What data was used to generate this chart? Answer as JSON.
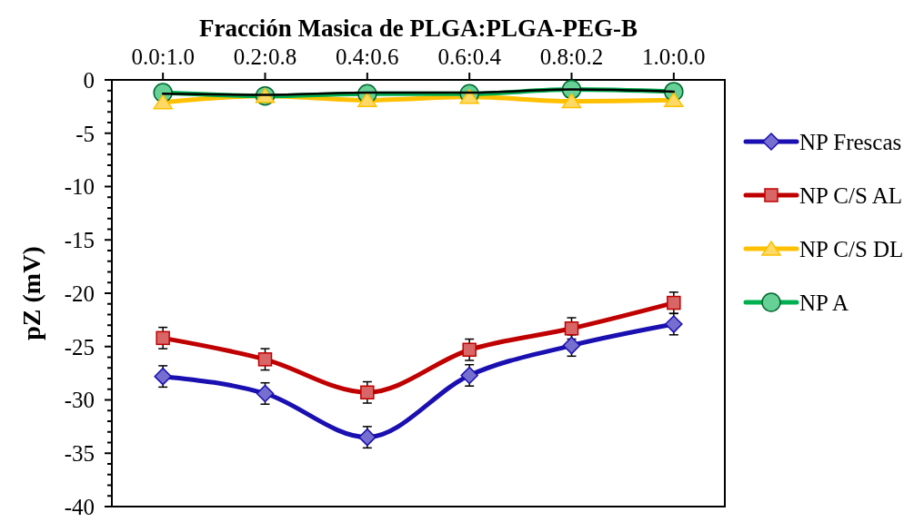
{
  "chart_data": {
    "type": "line",
    "xlabel": "Fracción Masica de PLGA:PLGA-PEG-B",
    "ylabel": "pZ (mV)",
    "categories": [
      "0.0:1.0",
      "0.2:0.8",
      "0.4:0.6",
      "0.6:0.4",
      "0.8:0.2",
      "1.0:0.0"
    ],
    "ylim": [
      -40,
      0
    ],
    "yticks": [
      0,
      {
        "value": -1,
        "label": null
      },
      {
        "value": -2,
        "label": null
      },
      {
        "value": -3,
        "label": null
      },
      {
        "value": -4,
        "label": null
      },
      -5,
      {
        "value": -6,
        "label": null
      },
      {
        "value": -7,
        "label": null
      },
      {
        "value": -8,
        "label": null
      },
      {
        "value": -9,
        "label": null
      },
      -10,
      {
        "value": -11,
        "label": null
      },
      {
        "value": -12,
        "label": null
      },
      {
        "value": -13,
        "label": null
      },
      {
        "value": -14,
        "label": null
      },
      -15,
      {
        "value": -16,
        "label": null
      },
      {
        "value": -17,
        "label": null
      },
      {
        "value": -18,
        "label": null
      },
      {
        "value": -19,
        "label": null
      },
      -20,
      {
        "value": -21,
        "label": null
      },
      {
        "value": -22,
        "label": null
      },
      {
        "value": -23,
        "label": null
      },
      {
        "value": -24,
        "label": null
      },
      -25,
      {
        "value": -26,
        "label": null
      },
      {
        "value": -27,
        "label": null
      },
      {
        "value": -28,
        "label": null
      },
      {
        "value": -29,
        "label": null
      },
      -30,
      {
        "value": -31,
        "label": null
      },
      {
        "value": -32,
        "label": null
      },
      {
        "value": -33,
        "label": null
      },
      {
        "value": -34,
        "label": null
      },
      -35,
      {
        "value": -36,
        "label": null
      },
      {
        "value": -37,
        "label": null
      },
      {
        "value": -38,
        "label": null
      },
      {
        "value": -39,
        "label": null
      },
      -40
    ],
    "legend": "right",
    "series": [
      {
        "name": "NP Frescas",
        "color": "#1a0fb0",
        "marker": "diamond",
        "values": [
          -27.8,
          -29.4,
          -33.5,
          -27.7,
          -24.9,
          -22.9
        ],
        "errors": [
          1,
          1,
          1,
          1,
          1,
          1
        ]
      },
      {
        "name": "NP C/S AL",
        "color": "#c00000",
        "marker": "square",
        "values": [
          -24.2,
          -26.2,
          -29.3,
          -25.3,
          -23.3,
          -20.9
        ],
        "errors": [
          1,
          1,
          1,
          1,
          1,
          1
        ]
      },
      {
        "name": "NP C/S DL",
        "color": "#ffc000",
        "marker": "triangle",
        "values": [
          -2.1,
          -1.5,
          -1.9,
          -1.6,
          -2.0,
          -1.9
        ]
      },
      {
        "name": "NP A",
        "color": "#00b050",
        "marker": "circle",
        "values": [
          -1.2,
          -1.5,
          -1.3,
          -1.3,
          -0.9,
          -1.1
        ]
      },
      {
        "type": "line",
        "color": "#000000",
        "marker": "none",
        "values": [
          -1.3,
          -1.4,
          -1.2,
          -1.2,
          -0.9,
          -1.1
        ]
      }
    ]
  }
}
